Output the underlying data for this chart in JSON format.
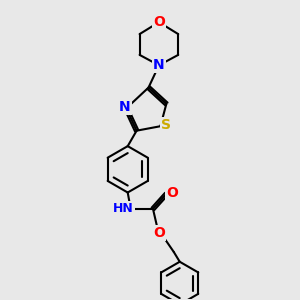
{
  "background_color": "#e8e8e8",
  "bond_color": "#000000",
  "bond_width": 1.5,
  "atom_colors": {
    "N": "#0000ff",
    "O": "#ff0000",
    "S": "#ccaa00",
    "C": "#000000",
    "H": "#000000"
  },
  "font_size_atom": 10
}
